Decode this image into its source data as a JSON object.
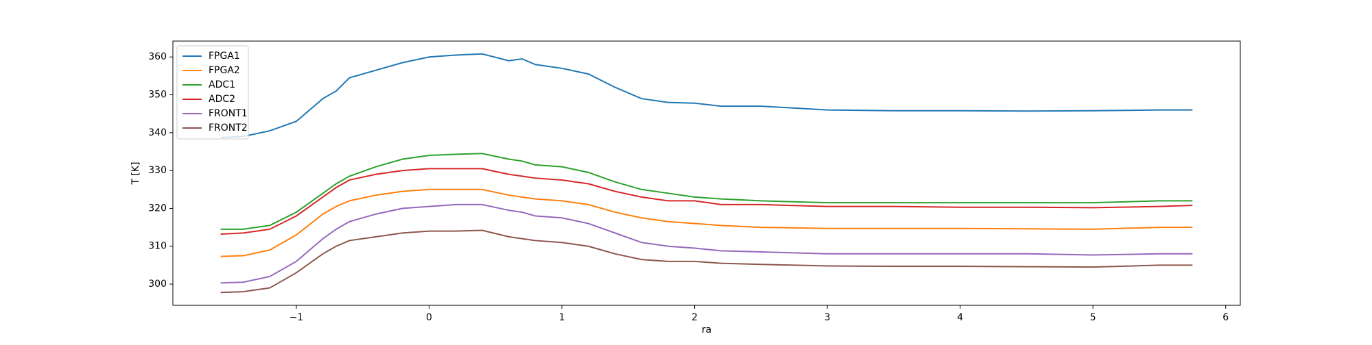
{
  "chart_data": {
    "type": "line",
    "x_label": "ra",
    "y_label": "T [K]",
    "x": [
      -1.57,
      -1.4,
      -1.2,
      -1.0,
      -0.8,
      -0.7,
      -0.6,
      -0.4,
      -0.2,
      0,
      0.2,
      0.4,
      0.6,
      0.7,
      0.8,
      1.0,
      1.2,
      1.4,
      1.6,
      1.8,
      2.0,
      2.2,
      2.5,
      3.0,
      3.5,
      4.0,
      4.5,
      5.0,
      5.5,
      5.75
    ],
    "series": [
      {
        "name": "FPGA1",
        "color": "#1f77b4",
        "values": [
          338.7,
          339,
          340.5,
          343,
          349,
          351,
          354.5,
          356.5,
          358.5,
          360,
          360.5,
          360.8,
          359,
          359.5,
          358,
          357,
          355.5,
          352,
          349,
          348,
          347.8,
          347,
          347,
          346,
          345.8,
          345.8,
          345.7,
          345.8,
          346,
          346
        ]
      },
      {
        "name": "FPGA2",
        "color": "#ff7f0e",
        "values": [
          307.3,
          307.5,
          309,
          313,
          318.5,
          320.5,
          322,
          323.5,
          324.5,
          325,
          325,
          325,
          323.5,
          323,
          322.5,
          322,
          321,
          319,
          317.5,
          316.5,
          316,
          315.5,
          315,
          314.7,
          314.7,
          314.7,
          314.6,
          314.5,
          315,
          315
        ]
      },
      {
        "name": "ADC1",
        "color": "#2ca02c",
        "values": [
          314.5,
          314.5,
          315.5,
          319,
          324,
          326.5,
          328.5,
          331,
          333,
          334,
          334.3,
          334.5,
          333,
          332.5,
          331.5,
          331,
          329.5,
          327,
          325,
          324,
          323,
          322.5,
          322,
          321.5,
          321.5,
          321.5,
          321.5,
          321.5,
          322,
          322
        ]
      },
      {
        "name": "ADC2",
        "color": "#d62728",
        "values": [
          313.2,
          313.5,
          314.5,
          318,
          323,
          325.5,
          327.5,
          329,
          330,
          330.5,
          330.5,
          330.5,
          329,
          328.5,
          328,
          327.5,
          326.5,
          324.5,
          323,
          322,
          322,
          321,
          321,
          320.5,
          320.5,
          320.3,
          320.3,
          320.2,
          320.5,
          320.8
        ]
      },
      {
        "name": "FRONT1",
        "color": "#9467bd",
        "values": [
          300.3,
          300.5,
          302,
          306,
          312,
          314.5,
          316.5,
          318.5,
          320,
          320.5,
          321,
          321,
          319.5,
          319,
          318,
          317.5,
          316,
          313.5,
          311,
          310,
          309.5,
          308.8,
          308.5,
          308,
          308,
          308,
          308,
          307.7,
          308,
          308
        ]
      },
      {
        "name": "FRONT2",
        "color": "#8c564b",
        "values": [
          297.8,
          298,
          299,
          303,
          308,
          310,
          311.5,
          312.5,
          313.5,
          314,
          314,
          314.2,
          312.5,
          312,
          311.5,
          311,
          310,
          308,
          306.5,
          306,
          306,
          305.5,
          305.2,
          304.8,
          304.7,
          304.7,
          304.6,
          304.5,
          305,
          305
        ]
      }
    ],
    "xlim": [
      -1.93,
      6.11
    ],
    "xticks": [
      {
        "value": -1,
        "label": "−1"
      },
      0,
      1,
      2,
      3,
      4,
      5,
      6
    ],
    "ylim": [
      294.4,
      364.2
    ],
    "yticks": [
      300,
      310,
      320,
      330,
      340,
      350,
      360
    ],
    "legend": "upper left"
  }
}
